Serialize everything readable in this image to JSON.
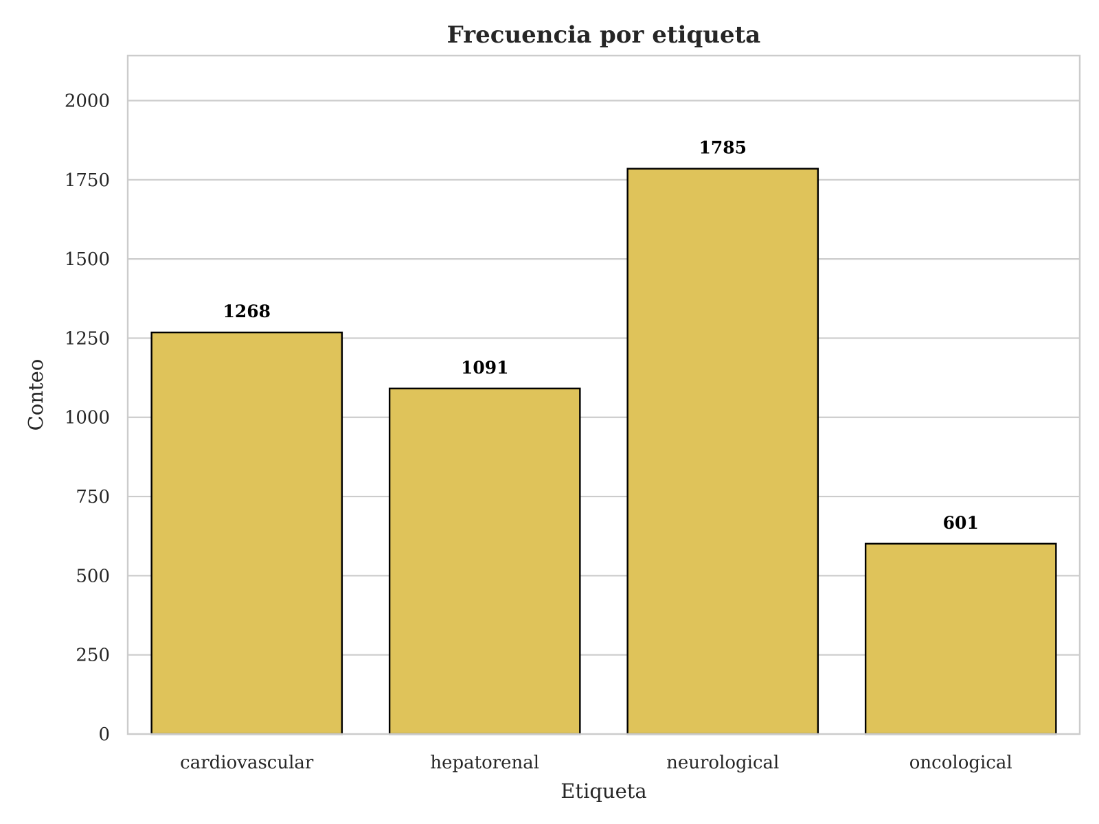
{
  "chart_data": {
    "type": "bar",
    "title": "Frecuencia por etiqueta",
    "xlabel": "Etiqueta",
    "ylabel": "Conteo",
    "categories": [
      "cardiovascular",
      "hepatorenal",
      "neurological",
      "oncological"
    ],
    "values": [
      1268,
      1091,
      1785,
      601
    ],
    "value_labels": [
      "1268",
      "1091",
      "1785",
      "601"
    ],
    "ylim": [
      0,
      2142
    ],
    "yticks": [
      0,
      250,
      500,
      750,
      1000,
      1250,
      1500,
      1750,
      2000
    ],
    "grid": "horizontal",
    "legend": "none",
    "colors": {
      "bar_fill": "#dfc35a",
      "bar_edge": "#000000",
      "grid": "#cccccc",
      "frame": "#cccccc",
      "text": "#262626"
    }
  }
}
